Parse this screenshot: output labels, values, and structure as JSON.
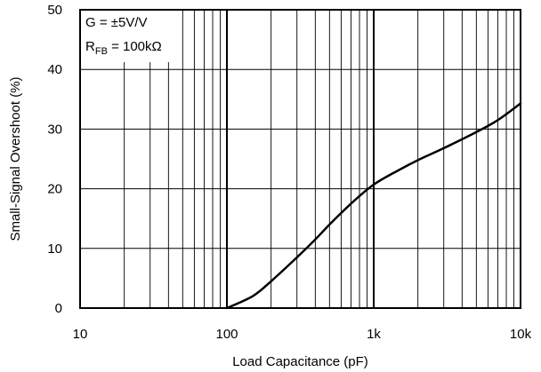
{
  "chart_data": {
    "type": "line",
    "title": "",
    "xlabel": "Load Capacitance (pF)",
    "ylabel": "Small-Signal Overshoot (%)",
    "xscale": "log",
    "xlim": [
      10,
      10000
    ],
    "ylim": [
      0,
      50
    ],
    "xticks": [
      {
        "value": 10,
        "label": "10"
      },
      {
        "value": 100,
        "label": "100"
      },
      {
        "value": 1000,
        "label": "1k"
      },
      {
        "value": 10000,
        "label": "10k"
      }
    ],
    "yticks": [
      {
        "value": 0,
        "label": "0"
      },
      {
        "value": 10,
        "label": "10"
      },
      {
        "value": 20,
        "label": "20"
      },
      {
        "value": 30,
        "label": "30"
      },
      {
        "value": 40,
        "label": "40"
      },
      {
        "value": 50,
        "label": "50"
      }
    ],
    "grid": true,
    "annotations": {
      "gain_line": "G = ±5V/V",
      "rfb_main": "R",
      "rfb_sub": "FB",
      "rfb_value": " = 100kΩ"
    },
    "series": [
      {
        "x": [
          100,
          150,
          200,
          300,
          400,
          500,
          700,
          1000,
          1500,
          2000,
          3000,
          5000,
          7000,
          10000
        ],
        "y": [
          0,
          2,
          4.5,
          8.5,
          11.5,
          14,
          17.5,
          20.7,
          23.2,
          24.8,
          26.8,
          29.5,
          31.5,
          34.3
        ]
      }
    ],
    "colors": {
      "line": "#000000",
      "grid": "#000000",
      "background": "#ffffff"
    }
  }
}
